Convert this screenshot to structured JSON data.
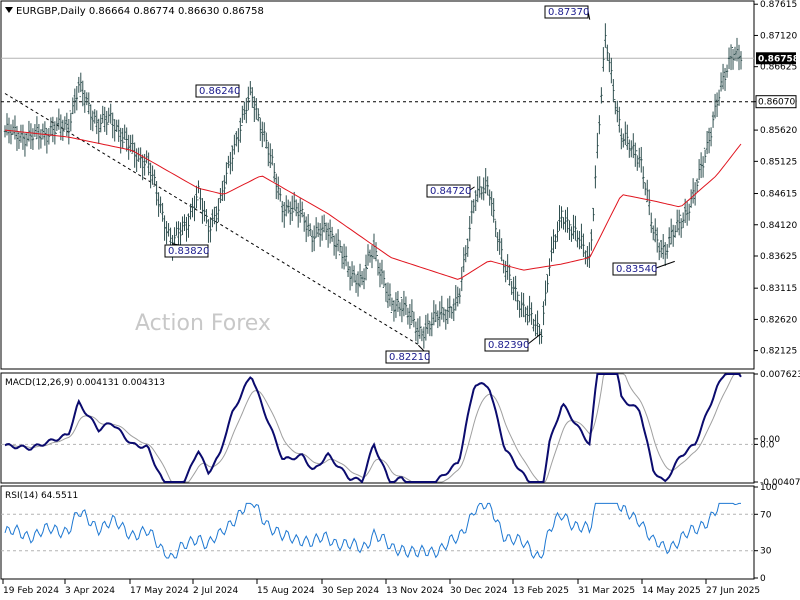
{
  "colors": {
    "bars": "#2f4f4f",
    "ma": "#e0141e",
    "macd": "#0b0b6e",
    "signal": "#a0a0a0",
    "rsi": "#1e78d2",
    "grid": "#888888",
    "label_fg": "#1a1a8c",
    "current_bg": "#000000",
    "frame": "#000000"
  },
  "main_header": "EURGBP,Daily  0.86664 0.86774 0.86630 0.86758",
  "watermark": "Action Forex",
  "price_axis": [
    "0.87615",
    "0.87120",
    "0.86625",
    "0.86070",
    "0.85620",
    "0.85125",
    "0.84615",
    "0.84120",
    "0.83625",
    "0.83115",
    "0.82620",
    "0.82125"
  ],
  "current_price": "0.86758",
  "support_level": "0.86070",
  "annotations": [
    "0.87370",
    "0.86240",
    "0.84720",
    "0.83820",
    "0.83540",
    "0.82390",
    "0.82210"
  ],
  "macd": {
    "header": "MACD(12,26,9) 0.004131 0.004313",
    "axis": [
      "0.007623",
      "0.00",
      "0.0",
      "-0.004073"
    ]
  },
  "rsi": {
    "header": "RSI(14) 64.5511",
    "axis": [
      "100",
      "70",
      "30",
      "0"
    ]
  },
  "x_axis": [
    "19 Feb 2024",
    "3 Apr 2024",
    "17 May 2024",
    "2 Jul 2024",
    "15 Aug 2024",
    "30 Sep 2024",
    "13 Nov 2024",
    "30 Dec 2024",
    "13 Feb 2025",
    "31 Mar 2025",
    "14 May 2025",
    "27 Jun 2025"
  ],
  "chart_data": {
    "type": "line",
    "series": [
      {
        "name": "EURGBP",
        "x": [
          "2024-02-19",
          "2024-03-08",
          "2024-04-03",
          "2024-04-10",
          "2024-04-24",
          "2024-05-03",
          "2024-05-17",
          "2024-05-28",
          "2024-06-14",
          "2024-06-25",
          "2024-07-02",
          "2024-07-09",
          "2024-07-17",
          "2024-07-26",
          "2024-08-08",
          "2024-08-15",
          "2024-08-30",
          "2024-09-13",
          "2024-09-20",
          "2024-09-30",
          "2024-10-15",
          "2024-10-24",
          "2024-11-01",
          "2024-11-13",
          "2024-11-21",
          "2024-12-02",
          "2024-12-18",
          "2024-12-30",
          "2025-01-10",
          "2025-01-20",
          "2025-01-31",
          "2025-02-13",
          "2025-02-25",
          "2025-03-03",
          "2025-03-12",
          "2025-03-20",
          "2025-03-31",
          "2025-04-11",
          "2025-04-22",
          "2025-05-05",
          "2025-05-14",
          "2025-05-22",
          "2025-05-29",
          "2025-06-12",
          "2025-06-27",
          "2025-07-08",
          "2025-07-14"
        ],
        "y": [
          0.856,
          0.855,
          0.857,
          0.863,
          0.857,
          0.858,
          0.853,
          0.851,
          0.838,
          0.842,
          0.846,
          0.841,
          0.844,
          0.853,
          0.862,
          0.857,
          0.844,
          0.843,
          0.839,
          0.841,
          0.834,
          0.832,
          0.838,
          0.828,
          0.829,
          0.824,
          0.827,
          0.829,
          0.846,
          0.847,
          0.834,
          0.828,
          0.824,
          0.835,
          0.843,
          0.84,
          0.836,
          0.871,
          0.855,
          0.852,
          0.84,
          0.837,
          0.84,
          0.846,
          0.86,
          0.869,
          0.8676
        ]
      },
      {
        "name": "MA",
        "x": [
          "2024-02-19",
          "2024-04-03",
          "2024-05-17",
          "2024-07-02",
          "2024-07-20",
          "2024-08-15",
          "2024-09-30",
          "2024-11-13",
          "2024-12-30",
          "2025-01-20",
          "2025-02-13",
          "2025-03-12",
          "2025-03-31",
          "2025-04-22",
          "2025-05-14",
          "2025-06-02",
          "2025-06-27",
          "2025-07-14"
        ],
        "y": [
          0.8562,
          0.8551,
          0.853,
          0.847,
          0.846,
          0.849,
          0.843,
          0.836,
          0.8325,
          0.8355,
          0.834,
          0.835,
          0.836,
          0.846,
          0.845,
          0.844,
          0.849,
          0.854
        ]
      }
    ],
    "ylim": [
      0.8185,
      0.8765
    ],
    "support": 0.8607,
    "current": 0.86758,
    "macd": {
      "macd": 0.004131,
      "signal": 0.004313,
      "ylim": [
        -0.004073,
        0.007623
      ]
    },
    "rsi": {
      "value": 64.5511,
      "levels": [
        70,
        30
      ],
      "ylim": [
        0,
        100
      ]
    }
  }
}
